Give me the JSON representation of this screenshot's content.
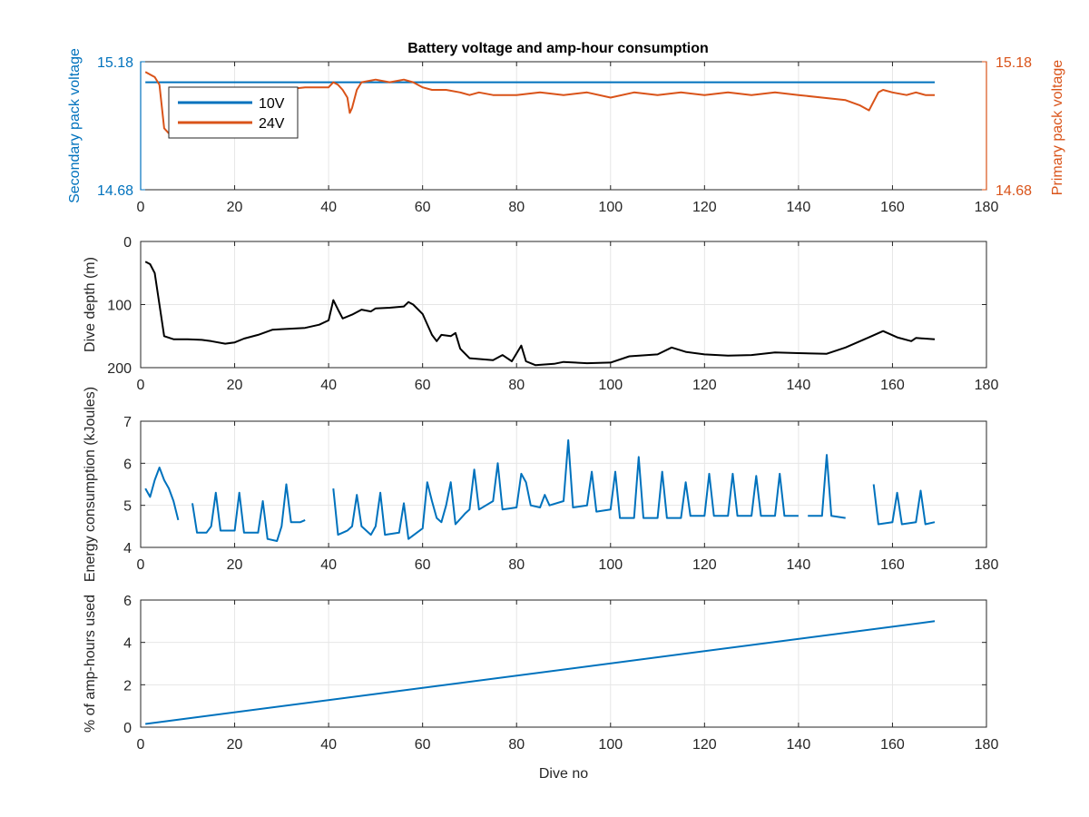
{
  "chart_data": [
    {
      "id": "voltage",
      "type": "line",
      "title": "Battery voltage and amp-hour consumption",
      "xlabel": "",
      "ylabel_left": "Secondary pack voltage",
      "ylabel_right": "Primary pack voltage",
      "xlim": [
        0,
        180
      ],
      "ylim": [
        14.68,
        15.18
      ],
      "xticks": [
        0,
        20,
        40,
        60,
        80,
        100,
        120,
        140,
        160,
        180
      ],
      "yticks_left": [
        "14.68",
        "15.18"
      ],
      "yticks_right": [
        "14.68",
        "15.18"
      ],
      "grid": true,
      "legend": "top-left",
      "series": [
        {
          "name": "10V",
          "color": "#0072BD",
          "axis": "left",
          "points": [
            [
              1,
              15.1
            ],
            [
              169,
              15.1
            ]
          ]
        },
        {
          "name": "24V",
          "color": "#D95319",
          "axis": "right",
          "points": [
            [
              1,
              15.14
            ],
            [
              2,
              15.13
            ],
            [
              3,
              15.12
            ],
            [
              4,
              15.09
            ],
            [
              5,
              14.92
            ],
            [
              6,
              14.9
            ],
            [
              7,
              14.93
            ],
            [
              8,
              15.03
            ],
            [
              10,
              15.06
            ],
            [
              15,
              15.07
            ],
            [
              20,
              15.06
            ],
            [
              25,
              15.07
            ],
            [
              30,
              15.07
            ],
            [
              35,
              15.08
            ],
            [
              40,
              15.08
            ],
            [
              41,
              15.1
            ],
            [
              42,
              15.09
            ],
            [
              43,
              15.07
            ],
            [
              44,
              15.04
            ],
            [
              44.5,
              14.98
            ],
            [
              45,
              15.0
            ],
            [
              46,
              15.07
            ],
            [
              47,
              15.1
            ],
            [
              50,
              15.11
            ],
            [
              53,
              15.1
            ],
            [
              56,
              15.11
            ],
            [
              58,
              15.1
            ],
            [
              60,
              15.08
            ],
            [
              62,
              15.07
            ],
            [
              65,
              15.07
            ],
            [
              68,
              15.06
            ],
            [
              70,
              15.05
            ],
            [
              72,
              15.06
            ],
            [
              75,
              15.05
            ],
            [
              80,
              15.05
            ],
            [
              85,
              15.06
            ],
            [
              90,
              15.05
            ],
            [
              95,
              15.06
            ],
            [
              100,
              15.04
            ],
            [
              105,
              15.06
            ],
            [
              110,
              15.05
            ],
            [
              115,
              15.06
            ],
            [
              120,
              15.05
            ],
            [
              125,
              15.06
            ],
            [
              130,
              15.05
            ],
            [
              135,
              15.06
            ],
            [
              140,
              15.05
            ],
            [
              145,
              15.04
            ],
            [
              150,
              15.03
            ],
            [
              153,
              15.01
            ],
            [
              155,
              14.99
            ],
            [
              157,
              15.06
            ],
            [
              158,
              15.07
            ],
            [
              160,
              15.06
            ],
            [
              163,
              15.05
            ],
            [
              165,
              15.06
            ],
            [
              167,
              15.05
            ],
            [
              169,
              15.05
            ]
          ]
        }
      ]
    },
    {
      "id": "depth",
      "type": "line",
      "title": "",
      "xlabel": "",
      "ylabel": "Dive depth (m)",
      "xlim": [
        0,
        180
      ],
      "ylim": [
        0,
        200
      ],
      "y_reversed": true,
      "xticks": [
        0,
        20,
        40,
        60,
        80,
        100,
        120,
        140,
        160,
        180
      ],
      "yticks": [
        0,
        100,
        200
      ],
      "grid": true,
      "series": [
        {
          "color": "#000000",
          "points": [
            [
              1,
              32
            ],
            [
              2,
              36
            ],
            [
              3,
              50
            ],
            [
              4,
              100
            ],
            [
              5,
              150
            ],
            [
              7,
              155
            ],
            [
              10,
              155
            ],
            [
              13,
              156
            ],
            [
              15,
              158
            ],
            [
              18,
              162
            ],
            [
              20,
              160
            ],
            [
              22,
              154
            ],
            [
              25,
              148
            ],
            [
              28,
              140
            ],
            [
              30,
              139
            ],
            [
              35,
              137
            ],
            [
              38,
              132
            ],
            [
              40,
              125
            ],
            [
              41,
              93
            ],
            [
              42,
              108
            ],
            [
              43,
              122
            ],
            [
              45,
              116
            ],
            [
              47,
              108
            ],
            [
              49,
              111
            ],
            [
              50,
              106
            ],
            [
              53,
              105
            ],
            [
              56,
              103
            ],
            [
              57,
              96
            ],
            [
              58,
              100
            ],
            [
              60,
              115
            ],
            [
              62,
              148
            ],
            [
              63,
              158
            ],
            [
              64,
              148
            ],
            [
              66,
              150
            ],
            [
              67,
              145
            ],
            [
              68,
              170
            ],
            [
              70,
              185
            ],
            [
              75,
              188
            ],
            [
              77,
              180
            ],
            [
              79,
              190
            ],
            [
              81,
              165
            ],
            [
              82,
              190
            ],
            [
              84,
              196
            ],
            [
              88,
              194
            ],
            [
              90,
              191
            ],
            [
              95,
              193
            ],
            [
              100,
              192
            ],
            [
              104,
              182
            ],
            [
              110,
              179
            ],
            [
              113,
              168
            ],
            [
              116,
              175
            ],
            [
              120,
              179
            ],
            [
              125,
              181
            ],
            [
              130,
              180
            ],
            [
              135,
              176
            ],
            [
              140,
              177
            ],
            [
              146,
              178
            ],
            [
              150,
              168
            ],
            [
              155,
              152
            ],
            [
              158,
              142
            ],
            [
              161,
              152
            ],
            [
              164,
              158
            ],
            [
              165,
              153
            ],
            [
              169,
              155
            ]
          ]
        }
      ]
    },
    {
      "id": "energy",
      "type": "line",
      "title": "",
      "xlabel": "",
      "ylabel": "Energy consumption (kJoules)",
      "xlim": [
        0,
        180
      ],
      "ylim": [
        4,
        7
      ],
      "xticks": [
        0,
        20,
        40,
        60,
        80,
        100,
        120,
        140,
        160,
        180
      ],
      "yticks": [
        4,
        5,
        6,
        7
      ],
      "grid": true,
      "series": [
        {
          "color": "#0072BD",
          "segments": [
            [
              [
                1,
                5.4
              ],
              [
                2,
                5.2
              ],
              [
                3,
                5.6
              ],
              [
                4,
                5.9
              ],
              [
                5,
                5.6
              ],
              [
                6,
                5.4
              ],
              [
                7,
                5.1
              ],
              [
                8,
                4.65
              ]
            ],
            [
              [
                11,
                5.05
              ],
              [
                12,
                4.35
              ],
              [
                14,
                4.35
              ],
              [
                15,
                4.5
              ],
              [
                16,
                5.3
              ],
              [
                17,
                4.4
              ],
              [
                20,
                4.4
              ],
              [
                21,
                5.3
              ],
              [
                22,
                4.35
              ],
              [
                25,
                4.35
              ],
              [
                26,
                5.1
              ],
              [
                27,
                4.2
              ],
              [
                29,
                4.15
              ],
              [
                30,
                4.5
              ],
              [
                31,
                5.5
              ],
              [
                32,
                4.6
              ],
              [
                34,
                4.6
              ],
              [
                35,
                4.65
              ]
            ],
            [
              [
                41,
                5.4
              ],
              [
                42,
                4.3
              ],
              [
                44,
                4.4
              ],
              [
                45,
                4.5
              ],
              [
                46,
                5.25
              ],
              [
                47,
                4.5
              ],
              [
                49,
                4.3
              ],
              [
                50,
                4.5
              ],
              [
                51,
                5.3
              ],
              [
                52,
                4.3
              ],
              [
                55,
                4.35
              ],
              [
                56,
                5.05
              ],
              [
                57,
                4.2
              ],
              [
                60,
                4.45
              ],
              [
                61,
                5.55
              ],
              [
                62,
                5.1
              ],
              [
                63,
                4.7
              ],
              [
                64,
                4.6
              ],
              [
                65,
                5.0
              ],
              [
                66,
                5.55
              ],
              [
                67,
                4.55
              ],
              [
                69,
                4.8
              ],
              [
                70,
                4.9
              ],
              [
                71,
                5.85
              ],
              [
                72,
                4.9
              ],
              [
                75,
                5.1
              ],
              [
                76,
                6.0
              ],
              [
                77,
                4.9
              ],
              [
                80,
                4.95
              ],
              [
                81,
                5.75
              ],
              [
                82,
                5.55
              ],
              [
                83,
                5.0
              ],
              [
                85,
                4.95
              ],
              [
                86,
                5.25
              ],
              [
                87,
                5.0
              ],
              [
                90,
                5.1
              ],
              [
                91,
                6.55
              ],
              [
                92,
                4.95
              ],
              [
                95,
                5.0
              ],
              [
                96,
                5.8
              ],
              [
                97,
                4.85
              ],
              [
                100,
                4.9
              ],
              [
                101,
                5.8
              ],
              [
                102,
                4.7
              ],
              [
                105,
                4.7
              ],
              [
                106,
                6.15
              ],
              [
                107,
                4.7
              ],
              [
                110,
                4.7
              ],
              [
                111,
                5.8
              ],
              [
                112,
                4.7
              ],
              [
                115,
                4.7
              ],
              [
                116,
                5.55
              ],
              [
                117,
                4.75
              ],
              [
                120,
                4.75
              ],
              [
                121,
                5.75
              ],
              [
                122,
                4.75
              ],
              [
                125,
                4.75
              ],
              [
                126,
                5.75
              ],
              [
                127,
                4.75
              ],
              [
                130,
                4.75
              ],
              [
                131,
                5.7
              ],
              [
                132,
                4.75
              ],
              [
                135,
                4.75
              ],
              [
                136,
                5.75
              ],
              [
                137,
                4.75
              ],
              [
                140,
                4.75
              ]
            ],
            [
              [
                142,
                4.75
              ],
              [
                145,
                4.75
              ],
              [
                146,
                6.2
              ],
              [
                147,
                4.75
              ],
              [
                150,
                4.7
              ]
            ],
            [
              [
                156,
                5.5
              ],
              [
                157,
                4.55
              ],
              [
                160,
                4.6
              ],
              [
                161,
                5.3
              ],
              [
                162,
                4.55
              ],
              [
                165,
                4.6
              ],
              [
                166,
                5.35
              ],
              [
                167,
                4.55
              ],
              [
                169,
                4.6
              ]
            ]
          ]
        }
      ]
    },
    {
      "id": "amphours",
      "type": "line",
      "title": "",
      "xlabel": "Dive no",
      "ylabel": "% of amp-hours used",
      "xlim": [
        0,
        180
      ],
      "ylim": [
        0,
        6
      ],
      "xticks": [
        0,
        20,
        40,
        60,
        80,
        100,
        120,
        140,
        160,
        180
      ],
      "yticks": [
        0,
        2,
        4,
        6
      ],
      "grid": true,
      "series": [
        {
          "color": "#0072BD",
          "points": [
            [
              1,
              0.15
            ],
            [
              169,
              5.0
            ]
          ]
        }
      ]
    }
  ]
}
